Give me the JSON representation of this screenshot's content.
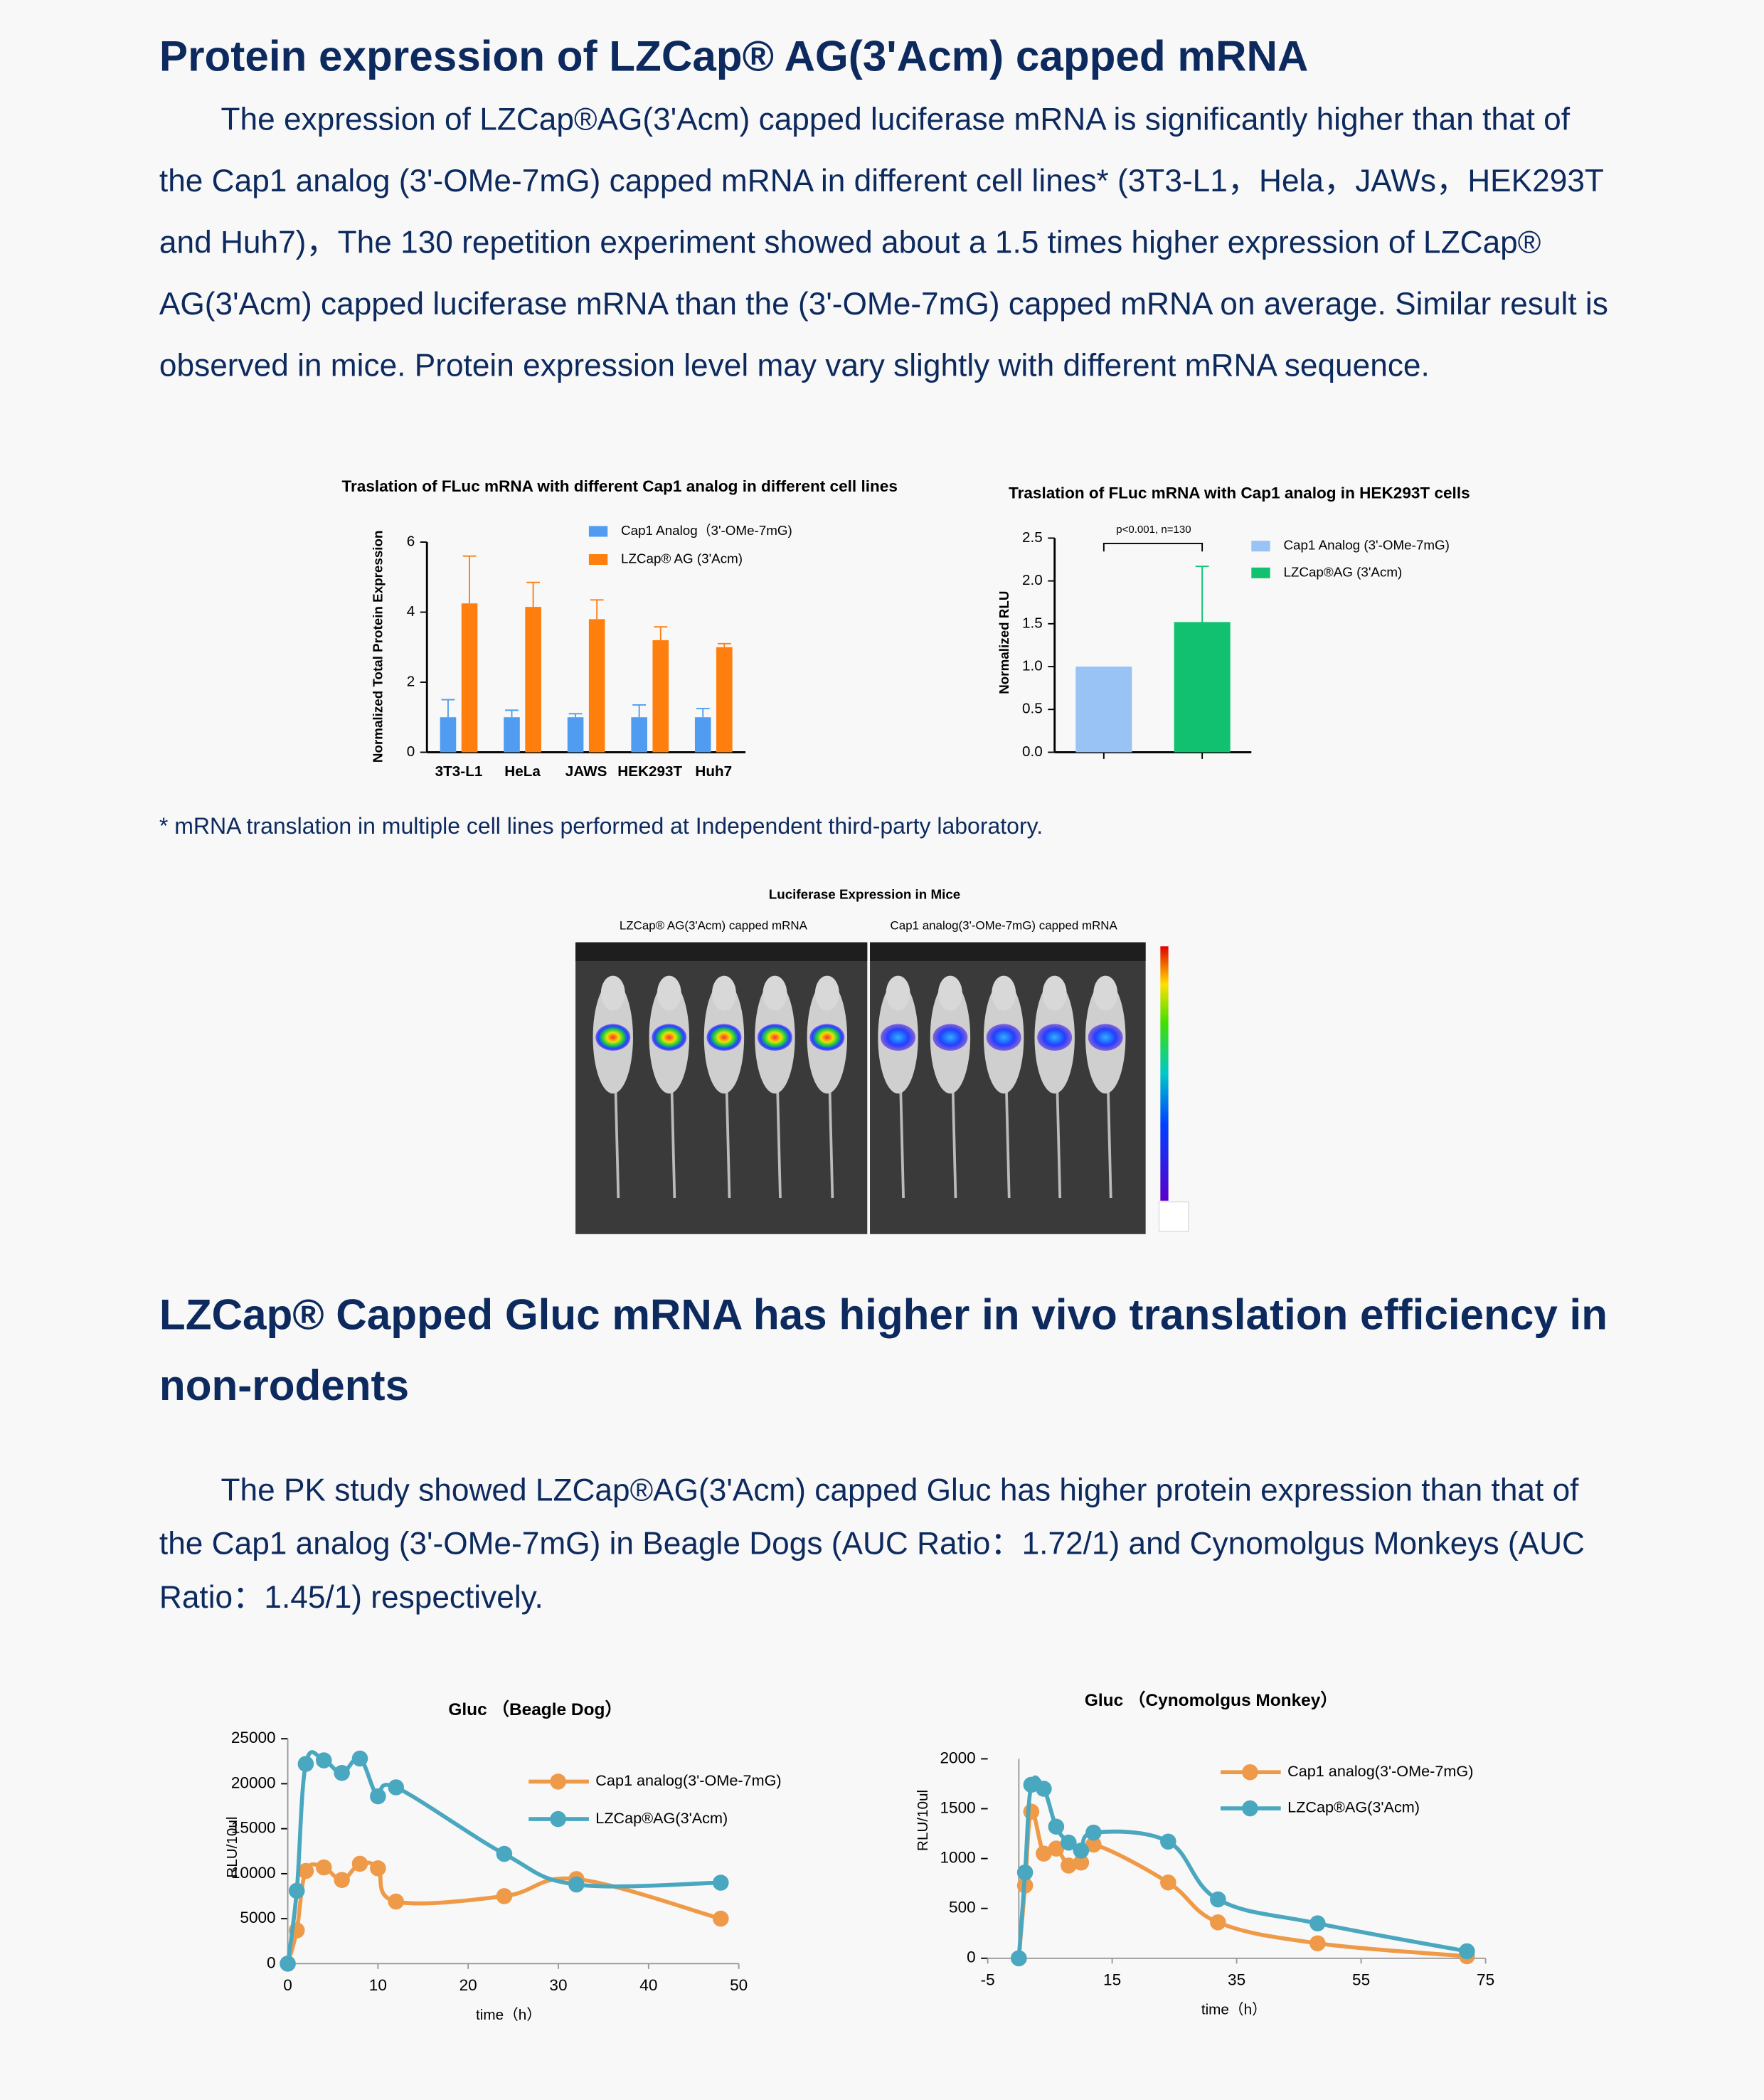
{
  "section1": {
    "title": "Protein expression of LZCap® AG(3'Acm) capped mRNA",
    "paragraph": "The expression of LZCap®AG(3'Acm) capped luciferase mRNA is significantly higher than that of the Cap1 analog (3'-OMe-7mG) capped mRNA in different cell lines* (3T3-L1，Hela，JAWs，HEK293T and Huh7)，The 130 repetition experiment showed about a 1.5 times higher expression of LZCap® AG(3'Acm) capped luciferase mRNA than the (3'-OMe-7mG) capped mRNA on average. Similar result is observed in mice. Protein expression level may vary slightly with different mRNA sequence."
  },
  "footnote": "* mRNA translation in multiple cell lines performed at Independent third-party laboratory.",
  "figure": {
    "title": "Luciferase Expression in Mice",
    "labels": [
      "LZCap® AG(3'Acm) capped mRNA",
      "Cap1  analog(3'-OMe-7mG) capped mRNA"
    ]
  },
  "section2": {
    "title": "LZCap® Capped Gluc mRNA has higher in vivo translation efficiency in non-rodents",
    "paragraph": "The PK study showed LZCap®AG(3'Acm) capped Gluc has higher protein expression than that of the Cap1 analog (3'-OMe-7mG) in Beagle Dogs (AUC Ratio：1.72/1) and Cynomolgus Monkeys (AUC Ratio：1.45/1) respectively."
  },
  "chart_data": [
    {
      "type": "bar",
      "title": "Traslation of FLuc mRNA with different Cap1 analog in different cell lines",
      "ylabel": "Normalized  Total Protein Expression",
      "categories": [
        "3T3-L1",
        "HeLa",
        "JAWS",
        "HEK293T",
        "Huh7"
      ],
      "series": [
        {
          "name": "Cap1 Analog（3'-OMe-7mG)",
          "color": "#4f9cf0",
          "values": [
            1,
            1,
            1,
            1,
            1
          ],
          "errors": [
            0.5,
            0.2,
            0.1,
            0.35,
            0.25
          ]
        },
        {
          "name": "LZCap® AG (3'Acm)",
          "color": "#ff7f0e",
          "values": [
            4.25,
            4.15,
            3.8,
            3.2,
            3.0
          ],
          "errors": [
            1.35,
            0.7,
            0.55,
            0.38,
            0.1
          ]
        }
      ],
      "ylim": [
        0,
        6
      ],
      "yticks": [
        0,
        2,
        4,
        6
      ]
    },
    {
      "type": "bar",
      "title": "Traslation of FLuc mRNA with Cap1 analog in HEK293T cells",
      "ylabel": "Normalized  RLU",
      "annotation": "p<0.001, n=130",
      "categories": [
        null,
        null
      ],
      "series": [
        {
          "name": "Cap1 Analog (3'-OMe-7mG)",
          "color": "#99c3f5",
          "values": [
            1.0,
            null
          ],
          "errors": [
            null,
            null
          ]
        },
        {
          "name": "LZCap®AG (3'Acm)",
          "color": "#11c16f",
          "values": [
            null,
            1.52
          ],
          "errors": [
            null,
            0.65
          ]
        }
      ],
      "ylim": [
        0,
        2.5
      ],
      "yticks": [
        {
          "value": 0,
          "label": "0.0"
        },
        {
          "value": 0.5,
          "label": "0.5"
        },
        {
          "value": 1,
          "label": "1.0"
        },
        {
          "value": 1.5,
          "label": "1.5"
        },
        {
          "value": 2,
          "label": "2.0"
        },
        {
          "value": 2.5,
          "label": "2.5"
        }
      ]
    },
    {
      "type": "line",
      "title": "Gluc （Beagle Dog）",
      "xlabel": "time（h）",
      "ylabel": "RLU/10ul",
      "x": [
        0,
        1,
        2,
        4,
        6,
        8,
        10,
        12,
        24,
        32,
        48
      ],
      "series": [
        {
          "name": "Cap1 analog(3'-OMe-7mG)",
          "color": "#ef9a48",
          "values": [
            0,
            3700,
            10300,
            10700,
            9300,
            11100,
            10600,
            6900,
            7500,
            9400,
            5000
          ]
        },
        {
          "name": "LZCap®AG(3'Acm)",
          "color": "#4aa7c0",
          "values": [
            0,
            8100,
            22200,
            22600,
            21200,
            22800,
            18600,
            19600,
            12200,
            8800,
            9000
          ]
        }
      ],
      "xlim": [
        0,
        50
      ],
      "xticks": [
        0,
        10,
        20,
        30,
        40,
        50
      ],
      "ylim": [
        0,
        25000
      ],
      "yticks": [
        0,
        5000,
        10000,
        15000,
        20000,
        25000
      ]
    },
    {
      "type": "line",
      "title": "Gluc （Cynomolgus Monkey）",
      "xlabel": "time（h）",
      "ylabel": "RLU/10ul",
      "x": [
        0,
        1,
        2,
        4,
        6,
        8,
        10,
        12,
        24,
        32,
        48,
        72
      ],
      "series": [
        {
          "name": "Cap1 analog(3'-OMe-7mG)",
          "color": "#ef9a48",
          "values": [
            0,
            730,
            1470,
            1050,
            1100,
            930,
            960,
            1140,
            760,
            360,
            150,
            20
          ]
        },
        {
          "name": "LZCap®AG(3'Acm)",
          "color": "#4aa7c0",
          "values": [
            0,
            860,
            1740,
            1700,
            1320,
            1160,
            1080,
            1260,
            1170,
            590,
            350,
            70
          ]
        }
      ],
      "xlim": [
        -5,
        75
      ],
      "xticks": [
        -5,
        15,
        35,
        55,
        75
      ],
      "ylim": [
        0,
        2000
      ],
      "yticks": [
        0,
        500,
        1000,
        1500,
        2000
      ]
    }
  ]
}
